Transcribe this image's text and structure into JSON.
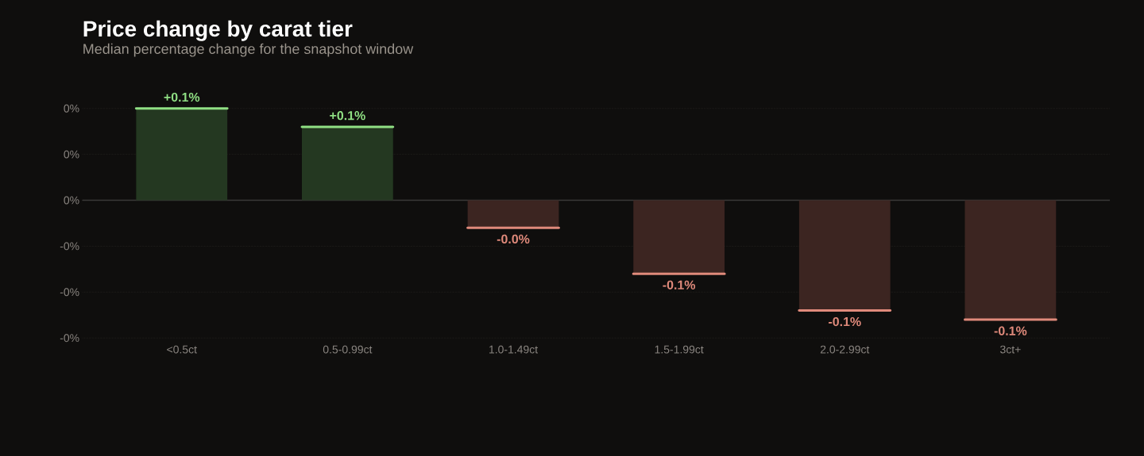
{
  "chart_data": {
    "type": "bar",
    "title": "Price change by carat tier",
    "subtitle": "Median percentage change for the snapshot window",
    "categories": [
      "<0.5ct",
      "0.5-0.99ct",
      "1.0-1.49ct",
      "1.5-1.99ct",
      "2.0-2.99ct",
      "3ct+"
    ],
    "values": [
      0.1,
      0.08,
      -0.03,
      -0.08,
      -0.12,
      -0.13
    ],
    "colors": [
      "#243821",
      "#243821",
      "#3c2521",
      "#3c2521",
      "#3c2521",
      "#3c2521"
    ],
    "value_labels": [
      "+0.1%",
      "+0.1%",
      "-0.0%",
      "-0.1%",
      "-0.1%",
      "-0.1%"
    ],
    "ylim": [
      -0.15,
      0.1
    ],
    "yticks": [
      {
        "value": 0.1,
        "label": "0%"
      },
      {
        "value": 0.05,
        "label": "0%"
      },
      {
        "value": 0,
        "label": "0%"
      },
      {
        "value": -0.05,
        "label": "-0%"
      },
      {
        "value": -0.1,
        "label": "-0%"
      },
      {
        "value": -0.15,
        "label": "-0%"
      }
    ],
    "grid": "y"
  }
}
